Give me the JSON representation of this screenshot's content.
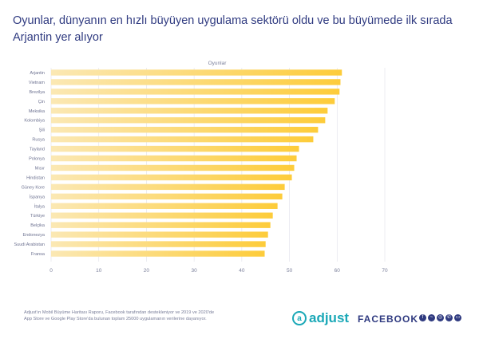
{
  "title": "Oyunlar, dünyanın en hızlı büyüyen uygulama sektörü oldu ve bu büyümede ilk sırada Arjantin yer alıyor",
  "chart_data": {
    "type": "bar",
    "orientation": "horizontal",
    "title": "Oyunlar",
    "xlabel": "",
    "ylabel": "",
    "xlim": [
      0,
      70
    ],
    "xticks": [
      0,
      10,
      20,
      30,
      40,
      50,
      60,
      70
    ],
    "grid": true,
    "bar_color_start": "#fbe8b4",
    "bar_color_end": "#fdcc3a",
    "categories": [
      "Arjantin",
      "Vietnam",
      "Brezilya",
      "Çin",
      "Meksika",
      "Kolombiya",
      "Şili",
      "Rusya",
      "Tayland",
      "Polonya",
      "Mısır",
      "Hindistan",
      "Güney Kore",
      "İspanya",
      "İtalya",
      "Türkiye",
      "Belçika",
      "Endonezya",
      "Suudi Arabistan",
      "Fransa"
    ],
    "values": [
      61,
      60.7,
      60.5,
      59.5,
      58,
      57.5,
      56,
      55,
      52,
      51.5,
      51,
      50.5,
      49,
      48.5,
      47.5,
      46.5,
      46,
      45.5,
      45,
      44.8
    ]
  },
  "footer": {
    "note_line1": "Adjust'ın Mobil Büyüme Haritası Raporu, Facebook tarafından destekleniyor ve 2019 ve 2020'de",
    "note_line2": "App Store ve Google Play Store'da bulunan toplam 25000 uygulamanın verilerine dayanıyor.",
    "adjust_logo": "adjust",
    "facebook_logo": "FACEBOOK",
    "social_icons": [
      "facebook-icon",
      "messenger-icon",
      "instagram-icon",
      "whatsapp-icon",
      "oculus-icon"
    ]
  }
}
